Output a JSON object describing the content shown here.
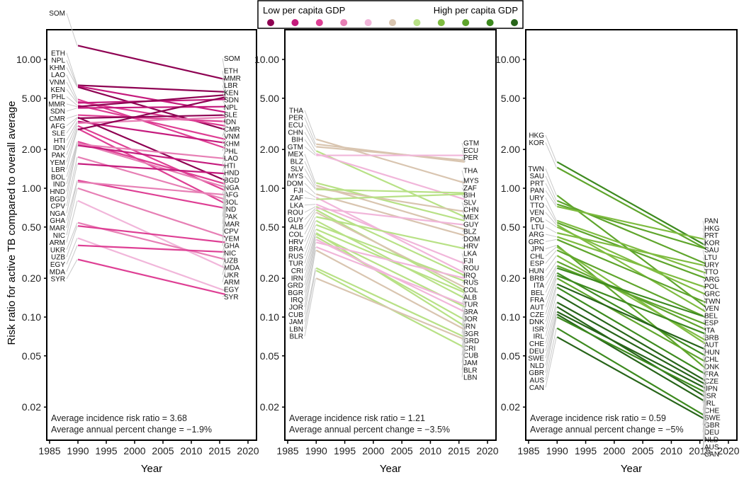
{
  "chart_data": [
    {
      "type": "line",
      "panel": "low",
      "ylabel": "Risk ratio for active TB compared to overall average",
      "xlabel": "Year",
      "yscale": "log",
      "ylim": [
        0.013,
        16
      ],
      "xlim": [
        1985,
        2021
      ],
      "x_ticks": [
        1985,
        1990,
        1995,
        2000,
        2005,
        2010,
        2015,
        2020
      ],
      "y_ticks": [
        0.02,
        0.05,
        0.1,
        0.2,
        0.5,
        1.0,
        2.0,
        5.0,
        10.0
      ],
      "y_tick_labels": [
        "0.02",
        "0.05",
        "0.10",
        "0.20",
        "0.50",
        "1.00",
        "2.00",
        "5.00",
        "10.00"
      ],
      "x": [
        1990,
        2016
      ],
      "annotations": [
        "Average incidence risk ratio = 3.68",
        "Average annual percent change = −1.9%"
      ],
      "series": [
        {
          "name": "SOM",
          "gdp_level": 0,
          "values": [
            12.8,
            7.0
          ]
        },
        {
          "name": "ETH",
          "gdp_level": 0,
          "values": [
            6.3,
            5.6
          ]
        },
        {
          "name": "NPL",
          "gdp_level": 1,
          "values": [
            6.2,
            3.9
          ]
        },
        {
          "name": "KHM",
          "gdp_level": 0,
          "values": [
            6.1,
            2.85
          ]
        },
        {
          "name": "LAO",
          "gdp_level": 2,
          "values": [
            4.9,
            2.05
          ]
        },
        {
          "name": "VNM",
          "gdp_level": 2,
          "values": [
            4.7,
            3.05
          ]
        },
        {
          "name": "KEN",
          "gdp_level": 1,
          "values": [
            4.6,
            4.9
          ]
        },
        {
          "name": "PHL",
          "gdp_level": 2,
          "values": [
            4.4,
            2.4
          ]
        },
        {
          "name": "MMR",
          "gdp_level": 0,
          "values": [
            4.3,
            5.3
          ]
        },
        {
          "name": "SDN",
          "gdp_level": 1,
          "values": [
            4.2,
            4.3
          ]
        },
        {
          "name": "CMR",
          "gdp_level": 2,
          "values": [
            3.7,
            3.3
          ]
        },
        {
          "name": "AFG",
          "gdp_level": 0,
          "values": [
            3.55,
            1.15
          ]
        },
        {
          "name": "SLE",
          "gdp_level": 0,
          "values": [
            3.5,
            3.7
          ]
        },
        {
          "name": "HTI",
          "gdp_level": 1,
          "values": [
            3.3,
            2.25
          ]
        },
        {
          "name": "IDN",
          "gdp_level": 3,
          "values": [
            3.2,
            3.55
          ]
        },
        {
          "name": "PAK",
          "gdp_level": 2,
          "values": [
            3.05,
            0.96
          ]
        },
        {
          "name": "YEM",
          "gdp_level": 2,
          "values": [
            2.9,
            0.76
          ]
        },
        {
          "name": "LBR",
          "gdp_level": 0,
          "values": [
            2.85,
            5.1
          ]
        },
        {
          "name": "BOL",
          "gdp_level": 2,
          "values": [
            2.3,
            1.08
          ]
        },
        {
          "name": "IND",
          "gdp_level": 3,
          "values": [
            2.25,
            1.02
          ]
        },
        {
          "name": "HND",
          "gdp_level": 3,
          "values": [
            2.2,
            1.7
          ]
        },
        {
          "name": "BGD",
          "gdp_level": 1,
          "values": [
            2.15,
            1.5
          ]
        },
        {
          "name": "CPV",
          "gdp_level": 3,
          "values": [
            1.75,
            0.82
          ]
        },
        {
          "name": "NGA",
          "gdp_level": 1,
          "values": [
            1.55,
            1.3
          ]
        },
        {
          "name": "GHA",
          "gdp_level": 2,
          "values": [
            1.15,
            0.7
          ]
        },
        {
          "name": "MAR",
          "gdp_level": 3,
          "values": [
            1.12,
            0.89
          ]
        },
        {
          "name": "NIC",
          "gdp_level": 3,
          "values": [
            1.0,
            0.42
          ]
        },
        {
          "name": "ARM",
          "gdp_level": 4,
          "values": [
            0.8,
            0.24
          ]
        },
        {
          "name": "UKR",
          "gdp_level": 3,
          "values": [
            0.54,
            0.28
          ]
        },
        {
          "name": "UZB",
          "gdp_level": 2,
          "values": [
            0.51,
            0.38
          ]
        },
        {
          "name": "EGY",
          "gdp_level": 4,
          "values": [
            0.41,
            0.16
          ]
        },
        {
          "name": "MDA",
          "gdp_level": 2,
          "values": [
            0.36,
            0.32
          ]
        },
        {
          "name": "SYR",
          "gdp_level": 2,
          "values": [
            0.28,
            0.15
          ]
        }
      ]
    },
    {
      "type": "line",
      "panel": "middle",
      "xlabel": "Year",
      "yscale": "log",
      "ylim": [
        0.013,
        16
      ],
      "xlim": [
        1985,
        2021
      ],
      "x_ticks": [
        1985,
        1990,
        1995,
        2000,
        2005,
        2010,
        2015,
        2020
      ],
      "y_ticks": [
        0.02,
        0.05,
        0.1,
        0.2,
        0.5,
        1.0,
        2.0,
        5.0,
        10.0
      ],
      "y_tick_labels": [
        "0.02",
        "0.05",
        "0.10",
        "0.20",
        "0.50",
        "1.00",
        "2.00",
        "5.00",
        "10.00"
      ],
      "x": [
        1990,
        2016
      ],
      "annotations": [
        "Average incidence risk ratio = 1.21",
        "Average annual percent change = −3.5%"
      ],
      "series": [
        {
          "name": "THA",
          "gdp_level": 5,
          "values": [
            2.4,
            1.1
          ]
        },
        {
          "name": "PER",
          "gdp_level": 5,
          "values": [
            2.2,
            1.6
          ]
        },
        {
          "name": "ECU",
          "gdp_level": 5,
          "values": [
            2.1,
            1.65
          ]
        },
        {
          "name": "CHN",
          "gdp_level": 6,
          "values": [
            1.95,
            0.6
          ]
        },
        {
          "name": "BIH",
          "gdp_level": 4,
          "values": [
            1.85,
            0.82
          ]
        },
        {
          "name": "GTM",
          "gdp_level": 4,
          "values": [
            1.8,
            1.8
          ]
        },
        {
          "name": "MEX",
          "gdp_level": 6,
          "values": [
            1.1,
            0.56
          ]
        },
        {
          "name": "BLZ",
          "gdp_level": 5,
          "values": [
            1.05,
            0.48
          ]
        },
        {
          "name": "SLV",
          "gdp_level": 5,
          "values": [
            1.0,
            0.66
          ]
        },
        {
          "name": "MYS",
          "gdp_level": 6,
          "values": [
            0.98,
            0.92
          ]
        },
        {
          "name": "DOM",
          "gdp_level": 5,
          "values": [
            0.9,
            0.43
          ]
        },
        {
          "name": "FJI",
          "gdp_level": 4,
          "values": [
            0.85,
            0.22
          ]
        },
        {
          "name": "ZAF",
          "gdp_level": 6,
          "values": [
            0.82,
            0.9
          ]
        },
        {
          "name": "LKA",
          "gdp_level": 4,
          "values": [
            0.75,
            0.26
          ]
        },
        {
          "name": "ROU",
          "gdp_level": 6,
          "values": [
            0.72,
            0.21
          ]
        },
        {
          "name": "GUY",
          "gdp_level": 4,
          "values": [
            0.7,
            0.52
          ]
        },
        {
          "name": "ALB",
          "gdp_level": 6,
          "values": [
            0.68,
            0.16
          ]
        },
        {
          "name": "COL",
          "gdp_level": 5,
          "values": [
            0.65,
            0.17
          ]
        },
        {
          "name": "HRV",
          "gdp_level": 6,
          "values": [
            0.6,
            0.34
          ]
        },
        {
          "name": "BRA",
          "gdp_level": 6,
          "values": [
            0.56,
            0.14
          ]
        },
        {
          "name": "RUS",
          "gdp_level": 6,
          "values": [
            0.52,
            0.19
          ]
        },
        {
          "name": "TUR",
          "gdp_level": 6,
          "values": [
            0.48,
            0.155
          ]
        },
        {
          "name": "CRI",
          "gdp_level": 6,
          "values": [
            0.45,
            0.085
          ]
        },
        {
          "name": "IRN",
          "gdp_level": 6,
          "values": [
            0.44,
            0.12
          ]
        },
        {
          "name": "GRD",
          "gdp_level": 6,
          "values": [
            0.42,
            0.095
          ]
        },
        {
          "name": "BGR",
          "gdp_level": 4,
          "values": [
            0.4,
            0.11
          ]
        },
        {
          "name": "IRQ",
          "gdp_level": 4,
          "values": [
            0.38,
            0.2
          ]
        },
        {
          "name": "JOR",
          "gdp_level": 4,
          "values": [
            0.35,
            0.125
          ]
        },
        {
          "name": "CUB",
          "gdp_level": 5,
          "values": [
            0.33,
            0.08
          ]
        },
        {
          "name": "JAM",
          "gdp_level": 6,
          "values": [
            0.24,
            0.07
          ]
        },
        {
          "name": "LBN",
          "gdp_level": 6,
          "values": [
            0.23,
            0.058
          ]
        },
        {
          "name": "BLR",
          "gdp_level": 5,
          "values": [
            0.2,
            0.067
          ]
        }
      ]
    },
    {
      "type": "line",
      "panel": "high",
      "xlabel": "Year",
      "yscale": "log",
      "ylim": [
        0.013,
        16
      ],
      "xlim": [
        1985,
        2021
      ],
      "x_ticks": [
        1985,
        1990,
        1995,
        2000,
        2005,
        2010,
        2015,
        2020
      ],
      "y_ticks": [
        0.02,
        0.05,
        0.1,
        0.2,
        0.5,
        1.0,
        2.0,
        5.0,
        10.0
      ],
      "y_tick_labels": [
        "0.02",
        "0.05",
        "0.10",
        "0.20",
        "0.50",
        "1.00",
        "2.00",
        "5.00",
        "10.00"
      ],
      "x": [
        1990,
        2016
      ],
      "annotations": [
        "Average incidence risk ratio = 0.59",
        "Average annual percent change = −5%"
      ],
      "series": [
        {
          "name": "HKG",
          "gdp_level": 9,
          "values": [
            1.6,
            0.36
          ]
        },
        {
          "name": "KOR",
          "gdp_level": 8,
          "values": [
            1.45,
            0.34
          ]
        },
        {
          "name": "TWN",
          "gdp_level": 8,
          "values": [
            0.88,
            0.12
          ]
        },
        {
          "name": "SAU",
          "gdp_level": 8,
          "values": [
            0.8,
            0.26
          ]
        },
        {
          "name": "PRT",
          "gdp_level": 8,
          "values": [
            0.75,
            0.34
          ]
        },
        {
          "name": "PAN",
          "gdp_level": 7,
          "values": [
            0.72,
            0.4
          ]
        },
        {
          "name": "URY",
          "gdp_level": 7,
          "values": [
            0.56,
            0.22
          ]
        },
        {
          "name": "TTO",
          "gdp_level": 8,
          "values": [
            0.54,
            0.2
          ]
        },
        {
          "name": "VEN",
          "gdp_level": 7,
          "values": [
            0.52,
            0.11
          ]
        },
        {
          "name": "POL",
          "gdp_level": 7,
          "values": [
            0.5,
            0.15
          ]
        },
        {
          "name": "LTU",
          "gdp_level": 7,
          "values": [
            0.45,
            0.25
          ]
        },
        {
          "name": "ARG",
          "gdp_level": 7,
          "values": [
            0.42,
            0.17
          ]
        },
        {
          "name": "GRC",
          "gdp_level": 8,
          "values": [
            0.4,
            0.13
          ]
        },
        {
          "name": "JPN",
          "gdp_level": 8,
          "values": [
            0.36,
            0.04
          ]
        },
        {
          "name": "CHL",
          "gdp_level": 7,
          "values": [
            0.35,
            0.062
          ]
        },
        {
          "name": "ESP",
          "gdp_level": 8,
          "values": [
            0.33,
            0.1
          ]
        },
        {
          "name": "HUN",
          "gdp_level": 7,
          "values": [
            0.3,
            0.066
          ]
        },
        {
          "name": "BRB",
          "gdp_level": 8,
          "values": [
            0.27,
            0.08
          ]
        },
        {
          "name": "ITA",
          "gdp_level": 8,
          "values": [
            0.25,
            0.088
          ]
        },
        {
          "name": "BEL",
          "gdp_level": 9,
          "values": [
            0.24,
            0.1
          ]
        },
        {
          "name": "FRA",
          "gdp_level": 9,
          "values": [
            0.22,
            0.05
          ]
        },
        {
          "name": "AUT",
          "gdp_level": 9,
          "values": [
            0.21,
            0.074
          ]
        },
        {
          "name": "CZE",
          "gdp_level": 8,
          "values": [
            0.2,
            0.045
          ]
        },
        {
          "name": "DNK",
          "gdp_level": 10,
          "values": [
            0.18,
            0.056
          ]
        },
        {
          "name": "ISR",
          "gdp_level": 9,
          "values": [
            0.17,
            0.036
          ]
        },
        {
          "name": "IRL",
          "gdp_level": 10,
          "values": [
            0.15,
            0.032
          ]
        },
        {
          "name": "CHE",
          "gdp_level": 10,
          "values": [
            0.13,
            0.03
          ]
        },
        {
          "name": "DEU",
          "gdp_level": 10,
          "values": [
            0.12,
            0.024
          ]
        },
        {
          "name": "SWE",
          "gdp_level": 10,
          "values": [
            0.11,
            0.028
          ]
        },
        {
          "name": "NLD",
          "gdp_level": 10,
          "values": [
            0.105,
            0.022
          ]
        },
        {
          "name": "GBR",
          "gdp_level": 9,
          "values": [
            0.1,
            0.026
          ]
        },
        {
          "name": "AUS",
          "gdp_level": 9,
          "values": [
            0.082,
            0.017
          ]
        },
        {
          "name": "CAN",
          "gdp_level": 10,
          "values": [
            0.07,
            0.016
          ]
        }
      ]
    }
  ],
  "legend": {
    "low_label": "Low per capita GDP",
    "high_label": "High per capita GDP",
    "colors": [
      "#8e0152",
      "#c51b7d",
      "#de3f94",
      "#e77fb5",
      "#f1b6da",
      "#d9c5b0",
      "#b8e186",
      "#7fbc41",
      "#5fa52c",
      "#3d8a1f",
      "#276419"
    ]
  },
  "labels": {
    "left_panel": {
      "start": [
        "SOM",
        "ETH",
        "NPL",
        "KHM",
        "LAO",
        "VNM",
        "KEN",
        "PHL",
        "MMR",
        "SDN",
        "CMR",
        "AFG",
        "SLE",
        "HTI",
        "IDN",
        "PAK",
        "YEM",
        "LBR",
        "BOL",
        "IND",
        "HND",
        "BGD",
        "CPV",
        "NGA",
        "GHA",
        "MAR",
        "NIC",
        "ARM",
        "UKR",
        "UZB",
        "EGY",
        "MDA",
        "SYR"
      ],
      "end": [
        "SOM",
        "ETH",
        "MMR",
        "LBR",
        "KEN",
        "SDN",
        "NPL",
        "SLE",
        "IDN",
        "CMR",
        "VNM",
        "KHM",
        "PHL",
        "LAO",
        "HTI",
        "HND",
        "BGD",
        "NGA",
        "AFG",
        "BOL",
        "IND",
        "PAK",
        "MAR",
        "CPV",
        "YEM",
        "GHA",
        "NIC",
        "UZB",
        "MDA",
        "UKR",
        "ARM",
        "EGY",
        "SYR"
      ]
    },
    "middle_panel": {
      "start": [
        "THA",
        "PER",
        "ECU",
        "CHN",
        "BIH",
        "GTM",
        "MEX",
        "BLZ",
        "SLV",
        "MYS",
        "DOM",
        "FJI",
        "ZAF",
        "LKA",
        "ROU",
        "GUY",
        "ALB",
        "COL",
        "HRV",
        "BRA",
        "RUS",
        "TUR",
        "CRI",
        "IRN",
        "GRD",
        "BGR",
        "IRQ",
        "JOR",
        "CUB",
        "JAM",
        "LBN",
        "BLR"
      ],
      "end": [
        "GTM",
        "ECU",
        "PER",
        "THA",
        "MYS",
        "ZAF",
        "BIH",
        "SLV",
        "CHN",
        "MEX",
        "GUY",
        "BLZ",
        "DOM",
        "HRV",
        "LKA",
        "FJI",
        "ROU",
        "IRQ",
        "RUS",
        "COL",
        "ALB",
        "TUR",
        "BRA",
        "JOR",
        "IRN",
        "BGR",
        "GRD",
        "CRI",
        "CUB",
        "JAM",
        "BLR",
        "LBN"
      ]
    },
    "right_panel": {
      "start": [
        "HKG",
        "KOR",
        "TWN",
        "SAU",
        "PRT",
        "PAN",
        "URY",
        "TTO",
        "VEN",
        "POL",
        "LTU",
        "ARG",
        "GRC",
        "JPN",
        "CHL",
        "ESP",
        "HUN",
        "BRB",
        "ITA",
        "BEL",
        "FRA",
        "AUT",
        "CZE",
        "DNK",
        "ISR",
        "IRL",
        "CHE",
        "DEU",
        "SWE",
        "NLD",
        "GBR",
        "AUS",
        "CAN"
      ],
      "end": [
        "PAN",
        "HKG",
        "PRT",
        "KOR",
        "SAU",
        "LTU",
        "URY",
        "TTO",
        "ARG",
        "POL",
        "GRC",
        "TWN",
        "VEN",
        "BEL",
        "ESP",
        "ITA",
        "BRB",
        "AUT",
        "HUN",
        "CHL",
        "DNK",
        "FRA",
        "CZE",
        "JPN",
        "ISR",
        "IRL",
        "CHE",
        "SWE",
        "GBR",
        "DEU",
        "NLD",
        "AUS",
        "CAN"
      ]
    }
  }
}
